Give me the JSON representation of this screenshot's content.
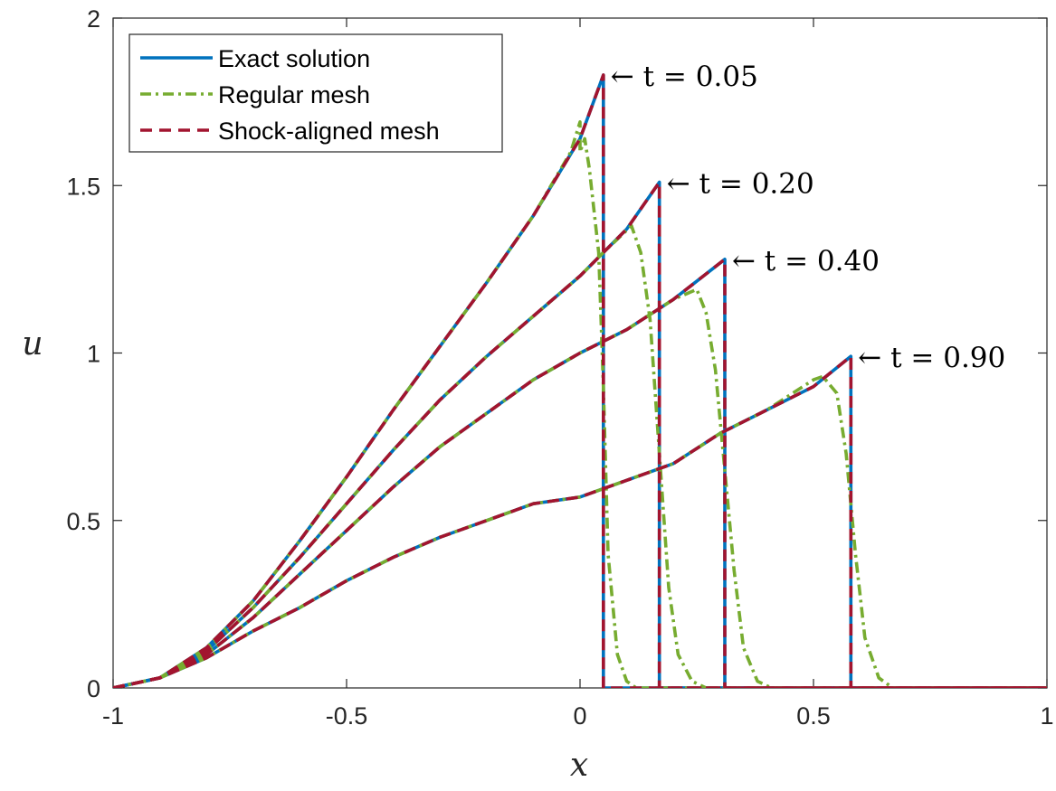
{
  "chart_data": {
    "type": "line",
    "xlabel": "x",
    "ylabel": "u",
    "xlim": [
      -1,
      1
    ],
    "ylim": [
      0,
      2
    ],
    "xticks": [
      -1,
      -0.5,
      0,
      0.5,
      1
    ],
    "xtick_labels": [
      "-1",
      "-0.5",
      "0",
      "0.5",
      "1"
    ],
    "yticks": [
      0,
      0.5,
      1,
      1.5,
      2
    ],
    "ytick_labels": [
      "0",
      "0.5",
      "1",
      "1.5",
      "2"
    ],
    "grid": false,
    "box": true,
    "legend": {
      "location": "top-left",
      "entries": [
        {
          "label": "Exact solution",
          "color": "#0072BD",
          "style": "solid"
        },
        {
          "label": "Regular mesh",
          "color": "#77AC30",
          "style": "dashdot"
        },
        {
          "label": "Shock-aligned mesh",
          "color": "#A2142F",
          "style": "dashed"
        }
      ]
    },
    "annotations": [
      {
        "text": "← t = 0.05",
        "x": 0.05,
        "y": 1.83
      },
      {
        "text": "← t = 0.20",
        "x": 0.17,
        "y": 1.51
      },
      {
        "text": "← t = 0.40",
        "x": 0.31,
        "y": 1.28
      },
      {
        "text": "← t = 0.90",
        "x": 0.58,
        "y": 0.99
      }
    ],
    "series": [
      {
        "name": "Exact solution",
        "t": 0.05,
        "points": [
          [
            -1,
            0
          ],
          [
            -0.9,
            0.03
          ],
          [
            -0.8,
            0.12
          ],
          [
            -0.7,
            0.26
          ],
          [
            -0.6,
            0.44
          ],
          [
            -0.5,
            0.63
          ],
          [
            -0.4,
            0.83
          ],
          [
            -0.3,
            1.02
          ],
          [
            -0.2,
            1.21
          ],
          [
            -0.1,
            1.41
          ],
          [
            0,
            1.64
          ],
          [
            0.05,
            1.83
          ],
          [
            0.05,
            0
          ],
          [
            1,
            0
          ]
        ]
      },
      {
        "name": "Exact solution",
        "t": 0.2,
        "points": [
          [
            -1,
            0
          ],
          [
            -0.9,
            0.03
          ],
          [
            -0.8,
            0.11
          ],
          [
            -0.7,
            0.24
          ],
          [
            -0.6,
            0.39
          ],
          [
            -0.5,
            0.55
          ],
          [
            -0.4,
            0.71
          ],
          [
            -0.3,
            0.86
          ],
          [
            -0.2,
            0.99
          ],
          [
            -0.1,
            1.11
          ],
          [
            0,
            1.23
          ],
          [
            0.1,
            1.37
          ],
          [
            0.17,
            1.51
          ],
          [
            0.17,
            0
          ],
          [
            1,
            0
          ]
        ]
      },
      {
        "name": "Exact solution",
        "t": 0.4,
        "points": [
          [
            -1,
            0
          ],
          [
            -0.9,
            0.03
          ],
          [
            -0.8,
            0.1
          ],
          [
            -0.7,
            0.21
          ],
          [
            -0.6,
            0.34
          ],
          [
            -0.5,
            0.47
          ],
          [
            -0.4,
            0.6
          ],
          [
            -0.3,
            0.72
          ],
          [
            -0.2,
            0.82
          ],
          [
            -0.1,
            0.92
          ],
          [
            0,
            1.0
          ],
          [
            0.1,
            1.07
          ],
          [
            0.2,
            1.16
          ],
          [
            0.31,
            1.28
          ],
          [
            0.31,
            0
          ],
          [
            1,
            0
          ]
        ]
      },
      {
        "name": "Exact solution",
        "t": 0.9,
        "points": [
          [
            -1,
            0
          ],
          [
            -0.9,
            0.03
          ],
          [
            -0.8,
            0.09
          ],
          [
            -0.7,
            0.17
          ],
          [
            -0.6,
            0.24
          ],
          [
            -0.5,
            0.32
          ],
          [
            -0.4,
            0.39
          ],
          [
            -0.3,
            0.45
          ],
          [
            -0.2,
            0.5
          ],
          [
            -0.1,
            0.55
          ],
          [
            0,
            0.57
          ],
          [
            0.1,
            0.62
          ],
          [
            0.2,
            0.67
          ],
          [
            0.3,
            0.76
          ],
          [
            0.4,
            0.83
          ],
          [
            0.5,
            0.9
          ],
          [
            0.58,
            0.99
          ],
          [
            0.58,
            0
          ],
          [
            1,
            0
          ]
        ]
      },
      {
        "name": "Regular mesh",
        "t": 0.05,
        "points": [
          [
            -1,
            0
          ],
          [
            -0.9,
            0.03
          ],
          [
            -0.8,
            0.12
          ],
          [
            -0.7,
            0.26
          ],
          [
            -0.6,
            0.44
          ],
          [
            -0.5,
            0.63
          ],
          [
            -0.4,
            0.83
          ],
          [
            -0.3,
            1.02
          ],
          [
            -0.2,
            1.21
          ],
          [
            -0.1,
            1.41
          ],
          [
            -0.02,
            1.6
          ],
          [
            0,
            1.69
          ],
          [
            0.0,
            1.6
          ],
          [
            0.01,
            1.64
          ],
          [
            0.02,
            1.55
          ],
          [
            0.04,
            1.3
          ],
          [
            0.05,
            0.9
          ],
          [
            0.06,
            0.4
          ],
          [
            0.08,
            0.1
          ],
          [
            0.1,
            0.02
          ],
          [
            0.12,
            0
          ],
          [
            1,
            0
          ]
        ]
      },
      {
        "name": "Regular mesh",
        "t": 0.2,
        "points": [
          [
            -1,
            0
          ],
          [
            -0.9,
            0.03
          ],
          [
            -0.8,
            0.11
          ],
          [
            -0.7,
            0.24
          ],
          [
            -0.6,
            0.39
          ],
          [
            -0.5,
            0.55
          ],
          [
            -0.4,
            0.71
          ],
          [
            -0.3,
            0.86
          ],
          [
            -0.2,
            0.99
          ],
          [
            -0.1,
            1.11
          ],
          [
            0,
            1.23
          ],
          [
            0.05,
            1.3
          ],
          [
            0.11,
            1.38
          ],
          [
            0.13,
            1.3
          ],
          [
            0.15,
            1.1
          ],
          [
            0.17,
            0.7
          ],
          [
            0.19,
            0.3
          ],
          [
            0.21,
            0.1
          ],
          [
            0.24,
            0.02
          ],
          [
            0.27,
            0
          ],
          [
            1,
            0
          ]
        ]
      },
      {
        "name": "Regular mesh",
        "t": 0.4,
        "points": [
          [
            -1,
            0
          ],
          [
            -0.9,
            0.03
          ],
          [
            -0.8,
            0.1
          ],
          [
            -0.7,
            0.21
          ],
          [
            -0.6,
            0.34
          ],
          [
            -0.5,
            0.47
          ],
          [
            -0.4,
            0.6
          ],
          [
            -0.3,
            0.72
          ],
          [
            -0.2,
            0.82
          ],
          [
            -0.1,
            0.92
          ],
          [
            0,
            1.0
          ],
          [
            0.1,
            1.07
          ],
          [
            0.2,
            1.16
          ],
          [
            0.25,
            1.19
          ],
          [
            0.27,
            1.12
          ],
          [
            0.29,
            0.95
          ],
          [
            0.31,
            0.65
          ],
          [
            0.33,
            0.35
          ],
          [
            0.35,
            0.12
          ],
          [
            0.38,
            0.02
          ],
          [
            0.41,
            0
          ],
          [
            1,
            0
          ]
        ]
      },
      {
        "name": "Regular mesh",
        "t": 0.9,
        "points": [
          [
            -1,
            0
          ],
          [
            -0.9,
            0.03
          ],
          [
            -0.8,
            0.09
          ],
          [
            -0.7,
            0.17
          ],
          [
            -0.6,
            0.24
          ],
          [
            -0.5,
            0.32
          ],
          [
            -0.4,
            0.39
          ],
          [
            -0.3,
            0.45
          ],
          [
            -0.2,
            0.5
          ],
          [
            -0.1,
            0.55
          ],
          [
            0,
            0.57
          ],
          [
            0.1,
            0.62
          ],
          [
            0.2,
            0.67
          ],
          [
            0.3,
            0.76
          ],
          [
            0.4,
            0.83
          ],
          [
            0.5,
            0.92
          ],
          [
            0.52,
            0.93
          ],
          [
            0.55,
            0.88
          ],
          [
            0.57,
            0.7
          ],
          [
            0.59,
            0.4
          ],
          [
            0.61,
            0.15
          ],
          [
            0.64,
            0.03
          ],
          [
            0.67,
            0
          ],
          [
            1,
            0
          ]
        ]
      },
      {
        "name": "Shock-aligned mesh",
        "t": 0.05,
        "points": [
          [
            -1,
            0
          ],
          [
            -0.9,
            0.03
          ],
          [
            -0.8,
            0.12
          ],
          [
            -0.7,
            0.26
          ],
          [
            -0.6,
            0.44
          ],
          [
            -0.5,
            0.63
          ],
          [
            -0.4,
            0.83
          ],
          [
            -0.3,
            1.02
          ],
          [
            -0.2,
            1.21
          ],
          [
            -0.1,
            1.41
          ],
          [
            0,
            1.64
          ],
          [
            0.05,
            1.83
          ],
          [
            0.05,
            0
          ],
          [
            1,
            0
          ]
        ]
      },
      {
        "name": "Shock-aligned mesh",
        "t": 0.2,
        "points": [
          [
            -1,
            0
          ],
          [
            -0.9,
            0.03
          ],
          [
            -0.8,
            0.11
          ],
          [
            -0.7,
            0.24
          ],
          [
            -0.6,
            0.39
          ],
          [
            -0.5,
            0.55
          ],
          [
            -0.4,
            0.71
          ],
          [
            -0.3,
            0.86
          ],
          [
            -0.2,
            0.99
          ],
          [
            -0.1,
            1.11
          ],
          [
            0,
            1.23
          ],
          [
            0.1,
            1.37
          ],
          [
            0.17,
            1.51
          ],
          [
            0.17,
            0
          ],
          [
            1,
            0
          ]
        ]
      },
      {
        "name": "Shock-aligned mesh",
        "t": 0.4,
        "points": [
          [
            -1,
            0
          ],
          [
            -0.9,
            0.03
          ],
          [
            -0.8,
            0.1
          ],
          [
            -0.7,
            0.21
          ],
          [
            -0.6,
            0.34
          ],
          [
            -0.5,
            0.47
          ],
          [
            -0.4,
            0.6
          ],
          [
            -0.3,
            0.72
          ],
          [
            -0.2,
            0.82
          ],
          [
            -0.1,
            0.92
          ],
          [
            0,
            1.0
          ],
          [
            0.1,
            1.07
          ],
          [
            0.2,
            1.16
          ],
          [
            0.31,
            1.28
          ],
          [
            0.31,
            0
          ],
          [
            1,
            0
          ]
        ]
      },
      {
        "name": "Shock-aligned mesh",
        "t": 0.9,
        "points": [
          [
            -1,
            0
          ],
          [
            -0.9,
            0.03
          ],
          [
            -0.8,
            0.09
          ],
          [
            -0.7,
            0.17
          ],
          [
            -0.6,
            0.24
          ],
          [
            -0.5,
            0.32
          ],
          [
            -0.4,
            0.39
          ],
          [
            -0.3,
            0.45
          ],
          [
            -0.2,
            0.5
          ],
          [
            -0.1,
            0.55
          ],
          [
            0,
            0.57
          ],
          [
            0.1,
            0.62
          ],
          [
            0.2,
            0.67
          ],
          [
            0.3,
            0.76
          ],
          [
            0.4,
            0.83
          ],
          [
            0.5,
            0.9
          ],
          [
            0.58,
            0.99
          ],
          [
            0.58,
            0
          ],
          [
            1,
            0
          ]
        ]
      }
    ]
  }
}
